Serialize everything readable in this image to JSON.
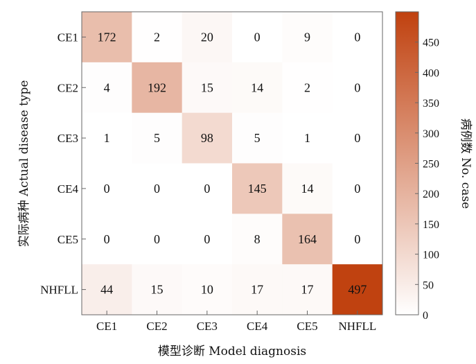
{
  "chart_data": {
    "type": "heatmap",
    "x_categories": [
      "CE1",
      "CE2",
      "CE3",
      "CE4",
      "CE5",
      "NHFLL"
    ],
    "y_categories": [
      "CE1",
      "CE2",
      "CE3",
      "CE4",
      "CE5",
      "NHFLL"
    ],
    "values": [
      [
        172,
        2,
        20,
        0,
        9,
        0
      ],
      [
        4,
        192,
        15,
        14,
        2,
        0
      ],
      [
        1,
        5,
        98,
        5,
        1,
        0
      ],
      [
        0,
        0,
        0,
        145,
        14,
        0
      ],
      [
        0,
        0,
        0,
        8,
        164,
        0
      ],
      [
        44,
        15,
        10,
        17,
        17,
        497
      ]
    ],
    "xlabel": "模型诊断 Model diagnosis",
    "ylabel": "实际病种 Actual disease type",
    "colorbar": {
      "label": "病例数 No. case",
      "range": [
        0,
        500
      ],
      "ticks": [
        0,
        50,
        100,
        150,
        200,
        250,
        300,
        350,
        400,
        450
      ],
      "colors": {
        "low": "#ffffff",
        "high": "#c0410f"
      }
    }
  }
}
